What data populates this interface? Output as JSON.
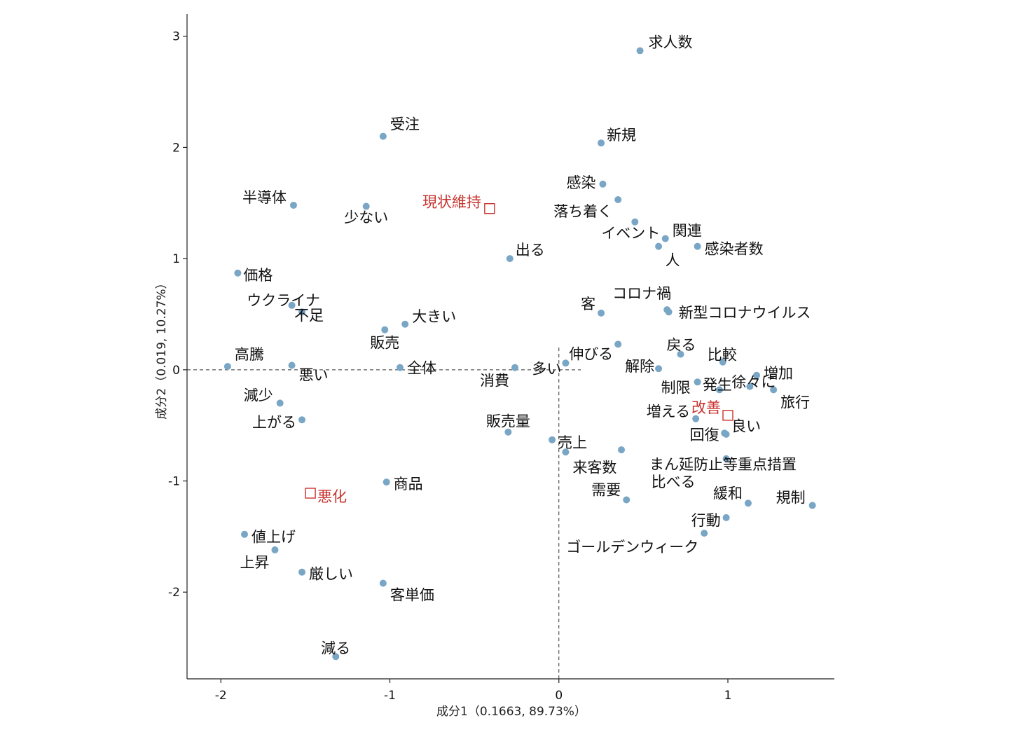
{
  "colors": {
    "point": "#7aa6c6",
    "category": "#c8322d",
    "text": "#111111",
    "axis": "#222222"
  },
  "chart_data": {
    "type": "scatter",
    "xlabel": "成分1（0.1663,  89.73%）",
    "ylabel": "成分2（0.019,  10.27%）",
    "xlim": [
      -2.2,
      1.63
    ],
    "ylim": [
      -2.78,
      3.2
    ],
    "xticks": [
      {
        "value": -2,
        "label": "-2"
      },
      {
        "value": -1,
        "label": "-1"
      },
      {
        "value": 0,
        "label": "0"
      },
      {
        "value": 1,
        "label": "1"
      }
    ],
    "yticks": [
      {
        "value": 3,
        "label": "3"
      },
      {
        "value": 2,
        "label": "2"
      },
      {
        "value": 1,
        "label": "1"
      },
      {
        "value": 0,
        "label": "0"
      },
      {
        "value": -1,
        "label": "-1"
      },
      {
        "value": -2,
        "label": "-2"
      }
    ],
    "categories": [
      {
        "label": "現状維持",
        "x": -0.41,
        "y": 1.45
      },
      {
        "label": "改善",
        "x": 1.0,
        "y": -0.41
      },
      {
        "label": "悪化",
        "x": -1.47,
        "y": -1.11
      }
    ],
    "words": [
      {
        "label": "求人数",
        "x": 0.48,
        "y": 2.87
      },
      {
        "label": "受注",
        "x": -1.04,
        "y": 2.1
      },
      {
        "label": "新規",
        "x": 0.25,
        "y": 2.04
      },
      {
        "label": "感染",
        "x": 0.26,
        "y": 1.67
      },
      {
        "label": "落ち着く",
        "x": 0.35,
        "y": 1.53
      },
      {
        "label": "半導体",
        "x": -1.57,
        "y": 1.48
      },
      {
        "label": "少ない",
        "x": -1.14,
        "y": 1.47
      },
      {
        "label": "イベント",
        "x": 0.45,
        "y": 1.33
      },
      {
        "label": "関連",
        "x": 0.63,
        "y": 1.18
      },
      {
        "label": "人",
        "x": 0.59,
        "y": 1.11
      },
      {
        "label": "感染者数",
        "x": 0.82,
        "y": 1.11
      },
      {
        "label": "出る",
        "x": -0.29,
        "y": 1.0
      },
      {
        "label": "価格",
        "x": -1.9,
        "y": 0.87
      },
      {
        "label": "ウクライナ",
        "x": -1.58,
        "y": 0.58
      },
      {
        "label": "不足",
        "x": -1.52,
        "y": 0.52
      },
      {
        "label": "コロナ禍",
        "x": 0.64,
        "y": 0.54
      },
      {
        "label": "新型コロナウイルス",
        "x": 0.65,
        "y": 0.52
      },
      {
        "label": "客",
        "x": 0.25,
        "y": 0.51
      },
      {
        "label": "大きい",
        "x": -0.91,
        "y": 0.41
      },
      {
        "label": "販売",
        "x": -1.03,
        "y": 0.36
      },
      {
        "label": "伸びる",
        "x": 0.35,
        "y": 0.23
      },
      {
        "label": "戻る",
        "x": 0.72,
        "y": 0.14
      },
      {
        "label": "比較",
        "x": 0.97,
        "y": 0.07
      },
      {
        "label": "高騰",
        "x": -1.96,
        "y": 0.03
      },
      {
        "label": "悪い",
        "x": -1.58,
        "y": 0.04
      },
      {
        "label": "全体",
        "x": -0.94,
        "y": 0.02
      },
      {
        "label": "消費",
        "x": -0.26,
        "y": 0.02
      },
      {
        "label": "多い",
        "x": 0.04,
        "y": 0.06
      },
      {
        "label": "解除",
        "x": 0.59,
        "y": 0.01
      },
      {
        "label": "増加",
        "x": 1.17,
        "y": -0.05
      },
      {
        "label": "制限",
        "x": 0.82,
        "y": -0.11
      },
      {
        "label": "発生",
        "x": 0.95,
        "y": -0.18
      },
      {
        "label": "徐々に",
        "x": 1.13,
        "y": -0.15
      },
      {
        "label": "旅行",
        "x": 1.27,
        "y": -0.18
      },
      {
        "label": "減少",
        "x": -1.65,
        "y": -0.3
      },
      {
        "label": "上がる",
        "x": -1.52,
        "y": -0.45
      },
      {
        "label": "増える",
        "x": 0.81,
        "y": -0.44
      },
      {
        "label": "販売量",
        "x": -0.3,
        "y": -0.56
      },
      {
        "label": "良い",
        "x": 0.98,
        "y": -0.57
      },
      {
        "label": "回復",
        "x": 0.99,
        "y": -0.58
      },
      {
        "label": "売上",
        "x": -0.04,
        "y": -0.63
      },
      {
        "label": "来客数",
        "x": 0.04,
        "y": -0.74
      },
      {
        "label": "まん延防止等重点措置",
        "x": 0.37,
        "y": -0.72
      },
      {
        "label": "比べる",
        "x": 0.99,
        "y": -0.8
      },
      {
        "label": "商品",
        "x": -1.02,
        "y": -1.01
      },
      {
        "label": "需要",
        "x": 0.4,
        "y": -1.17
      },
      {
        "label": "緩和",
        "x": 1.12,
        "y": -1.2
      },
      {
        "label": "規制",
        "x": 1.5,
        "y": -1.22
      },
      {
        "label": "行動",
        "x": 0.99,
        "y": -1.33
      },
      {
        "label": "ゴールデンウィーク",
        "x": 0.86,
        "y": -1.47
      },
      {
        "label": "値上げ",
        "x": -1.86,
        "y": -1.48
      },
      {
        "label": "上昇",
        "x": -1.68,
        "y": -1.62
      },
      {
        "label": "厳しい",
        "x": -1.52,
        "y": -1.82
      },
      {
        "label": "客単価",
        "x": -1.04,
        "y": -1.92
      },
      {
        "label": "減る",
        "x": -1.32,
        "y": -2.58
      }
    ]
  }
}
